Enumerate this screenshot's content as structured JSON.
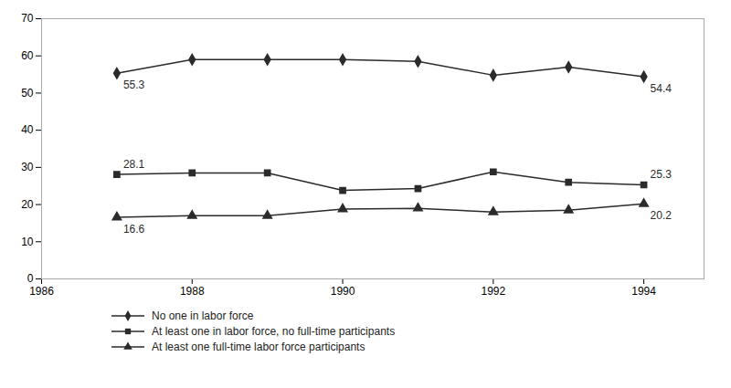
{
  "chart_data": {
    "type": "line",
    "x": [
      1987,
      1988,
      1989,
      1990,
      1991,
      1992,
      1993,
      1994
    ],
    "series": [
      {
        "name": "No one in labor force",
        "color": "#2b2b2b",
        "marker": "diamond",
        "values": [
          55.3,
          59.0,
          59.0,
          59.0,
          58.5,
          54.8,
          57.0,
          54.4
        ]
      },
      {
        "name": "At least one in labor force, no full-time participants",
        "color": "#2b2b2b",
        "marker": "square",
        "values": [
          28.1,
          28.5,
          28.5,
          23.8,
          24.3,
          28.8,
          26.0,
          25.3
        ]
      },
      {
        "name": "At least one full-time labor force participants",
        "color": "#2b2b2b",
        "marker": "triangle",
        "values": [
          16.6,
          17.0,
          17.0,
          18.8,
          19.0,
          18.0,
          18.5,
          20.2
        ]
      }
    ],
    "annotations": [
      {
        "series": "No one in labor force",
        "x": 1987,
        "y": 55.3,
        "text": "55.3"
      },
      {
        "series": "At least one in labor force, no full-time participants",
        "x": 1987,
        "y": 28.1,
        "text": "28.1"
      },
      {
        "series": "At least one full-time labor force participants",
        "x": 1987,
        "y": 16.6,
        "text": "16.6"
      },
      {
        "series": "No one in labor force",
        "x": 1994,
        "y": 54.4,
        "text": "54.4"
      },
      {
        "series": "At least one in labor force, no full-time participants",
        "x": 1994,
        "y": 25.3,
        "text": "25.3"
      },
      {
        "series": "At least one full-time labor force participants",
        "x": 1994,
        "y": 20.2,
        "text": "20.2"
      }
    ],
    "xlim": [
      1986,
      1994.8
    ],
    "xticks": [
      1986,
      1988,
      1990,
      1992,
      1994
    ],
    "ylim": [
      0,
      70
    ],
    "yticks": [
      0,
      10,
      20,
      30,
      40,
      50,
      60,
      70
    ],
    "grid": false,
    "legend": "bottom"
  }
}
